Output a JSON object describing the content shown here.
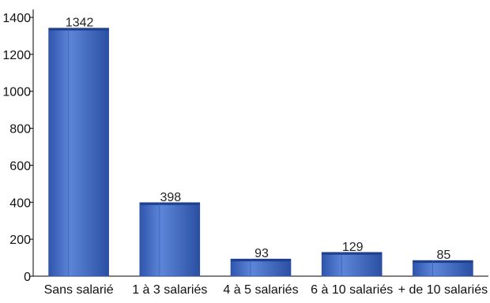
{
  "chart_data": {
    "type": "bar",
    "title": "",
    "xlabel": "",
    "ylabel": "",
    "categories": [
      "Sans salarié",
      "1 à 3 salariés",
      "4 à 5 salariés",
      "6 à 10 salariés",
      "+ de 10 salariés"
    ],
    "values": [
      1342,
      398,
      93,
      129,
      85
    ],
    "data_labels": [
      "1342",
      "398",
      "93",
      "129",
      "85"
    ],
    "ylim": [
      0,
      1400
    ],
    "yticks": [
      0,
      200,
      400,
      600,
      800,
      1000,
      1200,
      1400
    ],
    "ytick_labels": [
      "0",
      "200",
      "400",
      "600",
      "800",
      "1000",
      "1200",
      "1400"
    ],
    "grid": false,
    "legend": "none",
    "bar_color": "#3F67C0"
  }
}
